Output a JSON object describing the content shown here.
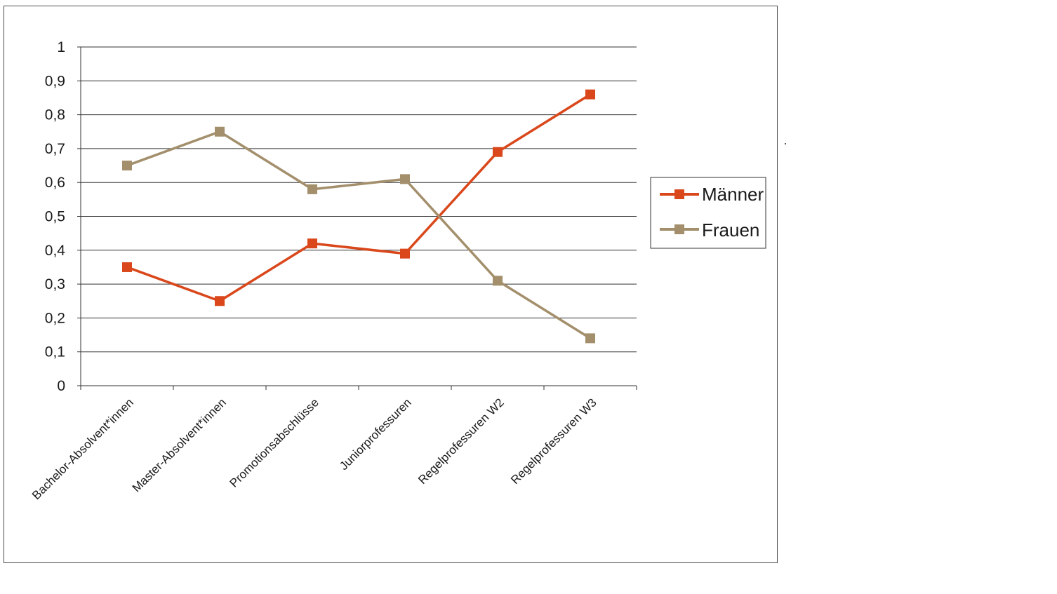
{
  "chart_data": {
    "type": "line",
    "categories": [
      "Bachelor-Absolvent*innen",
      "Master-Absolvent*innen",
      "Promotionsabschlüsse",
      "Juniorprofessuren",
      "Regelprofessuren W2",
      "Regelprofessuren W3"
    ],
    "series": [
      {
        "name": "Männer",
        "values": [
          0.35,
          0.25,
          0.42,
          0.39,
          0.69,
          0.86
        ],
        "color": "#d9471b",
        "marker": "square"
      },
      {
        "name": "Frauen",
        "values": [
          0.65,
          0.75,
          0.58,
          0.61,
          0.31,
          0.14
        ],
        "color": "#a38f6c",
        "marker": "square"
      }
    ],
    "y_ticks": [
      "0",
      "0,1",
      "0,2",
      "0,3",
      "0,4",
      "0,5",
      "0,6",
      "0,7",
      "0,8",
      "0,9",
      "1"
    ],
    "ylim": [
      0,
      1
    ],
    "grid": true,
    "legend": "right"
  }
}
